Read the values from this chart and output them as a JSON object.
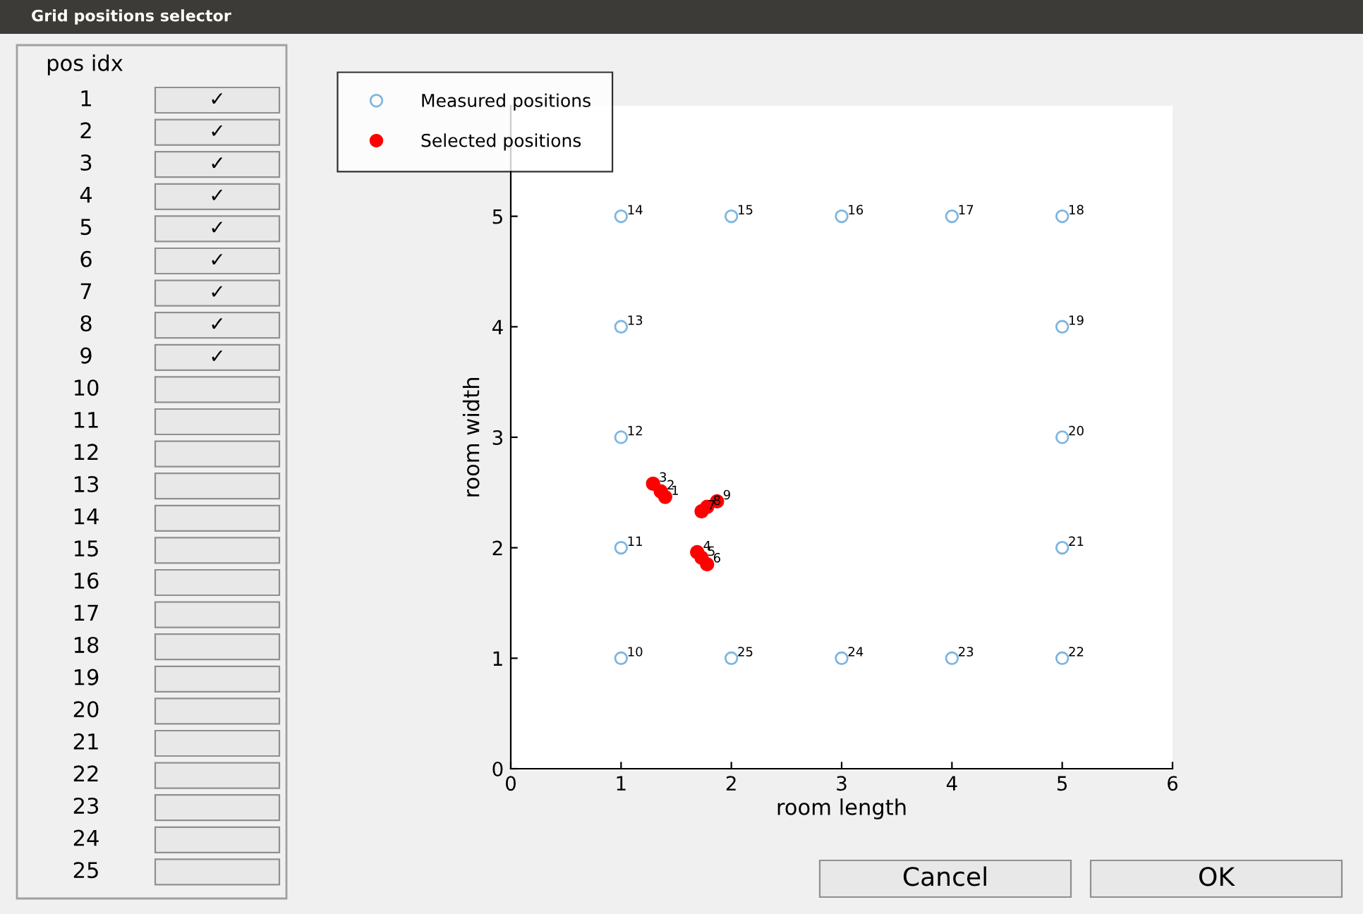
{
  "chart_data": {
    "type": "scatter",
    "xlabel": "room length",
    "ylabel": "room width",
    "xlim": [
      0,
      6
    ],
    "ylim": [
      0,
      6
    ],
    "xticks": [
      0,
      1,
      2,
      3,
      4,
      5,
      6
    ],
    "yticks": [
      0,
      1,
      2,
      3,
      4,
      5
    ],
    "grid": false,
    "legend": "top left",
    "marker": "circle",
    "series": [
      {
        "name": "Measured positions",
        "color": "#7eb6e0",
        "x": [
          1,
          1,
          1,
          1,
          1,
          2,
          3,
          4,
          5,
          5,
          5,
          5,
          5,
          4,
          3,
          2
        ],
        "values": [
          1,
          2,
          3,
          4,
          5,
          5,
          5,
          5,
          5,
          4,
          3,
          2,
          1,
          1,
          1,
          1
        ]
      },
      {
        "name": "Selected positions",
        "color": "#ff0000",
        "x": [
          1.4,
          1.36,
          1.29,
          1.69,
          1.73,
          1.78,
          1.73,
          1.78,
          1.87
        ],
        "values": [
          2.46,
          2.51,
          2.58,
          1.96,
          1.91,
          1.85,
          2.33,
          2.37,
          2.42
        ]
      }
    ],
    "annotations": [
      "Grid positions selector",
      "pos idx",
      "1",
      "2",
      "3",
      "4",
      "5",
      "6",
      "7",
      "8",
      "9",
      "10",
      "11",
      "12",
      "13",
      "14",
      "15",
      "16",
      "17",
      "18",
      "19",
      "20",
      "21",
      "22",
      "23",
      "24",
      "25",
      "✓",
      "✓",
      "✓",
      "✓",
      "✓",
      "✓",
      "✓",
      "✓",
      "✓",
      "Cancel",
      "OK",
      {
        "text": "1",
        "x": 1.4,
        "y": 2.46
      },
      {
        "text": "2",
        "x": 1.36,
        "y": 2.51
      },
      {
        "text": "3",
        "x": 1.29,
        "y": 2.58
      },
      {
        "text": "4",
        "x": 1.69,
        "y": 1.96
      },
      {
        "text": "5",
        "x": 1.73,
        "y": 1.91
      },
      {
        "text": "6",
        "x": 1.78,
        "y": 1.85
      },
      {
        "text": "7",
        "x": 1.73,
        "y": 2.33
      },
      {
        "text": "8",
        "x": 1.78,
        "y": 2.37
      },
      {
        "text": "9",
        "x": 1.87,
        "y": 2.42
      },
      {
        "text": "10",
        "x": 1,
        "y": 1
      },
      {
        "text": "11",
        "x": 1,
        "y": 2
      },
      {
        "text": "12",
        "x": 1,
        "y": 3
      },
      {
        "text": "13",
        "x": 1,
        "y": 4
      },
      {
        "text": "14",
        "x": 1,
        "y": 5
      },
      {
        "text": "15",
        "x": 2,
        "y": 5
      },
      {
        "text": "16",
        "x": 3,
        "y": 5
      },
      {
        "text": "17",
        "x": 4,
        "y": 5
      },
      {
        "text": "18",
        "x": 5,
        "y": 5
      },
      {
        "text": "19",
        "x": 5,
        "y": 4
      },
      {
        "text": "20",
        "x": 5,
        "y": 3
      },
      {
        "text": "21",
        "x": 5,
        "y": 2
      },
      {
        "text": "22",
        "x": 5,
        "y": 1
      },
      {
        "text": "23",
        "x": 4,
        "y": 1
      },
      {
        "text": "24",
        "x": 3,
        "y": 1
      },
      {
        "text": "25",
        "x": 2,
        "y": 1
      }
    ]
  }
}
